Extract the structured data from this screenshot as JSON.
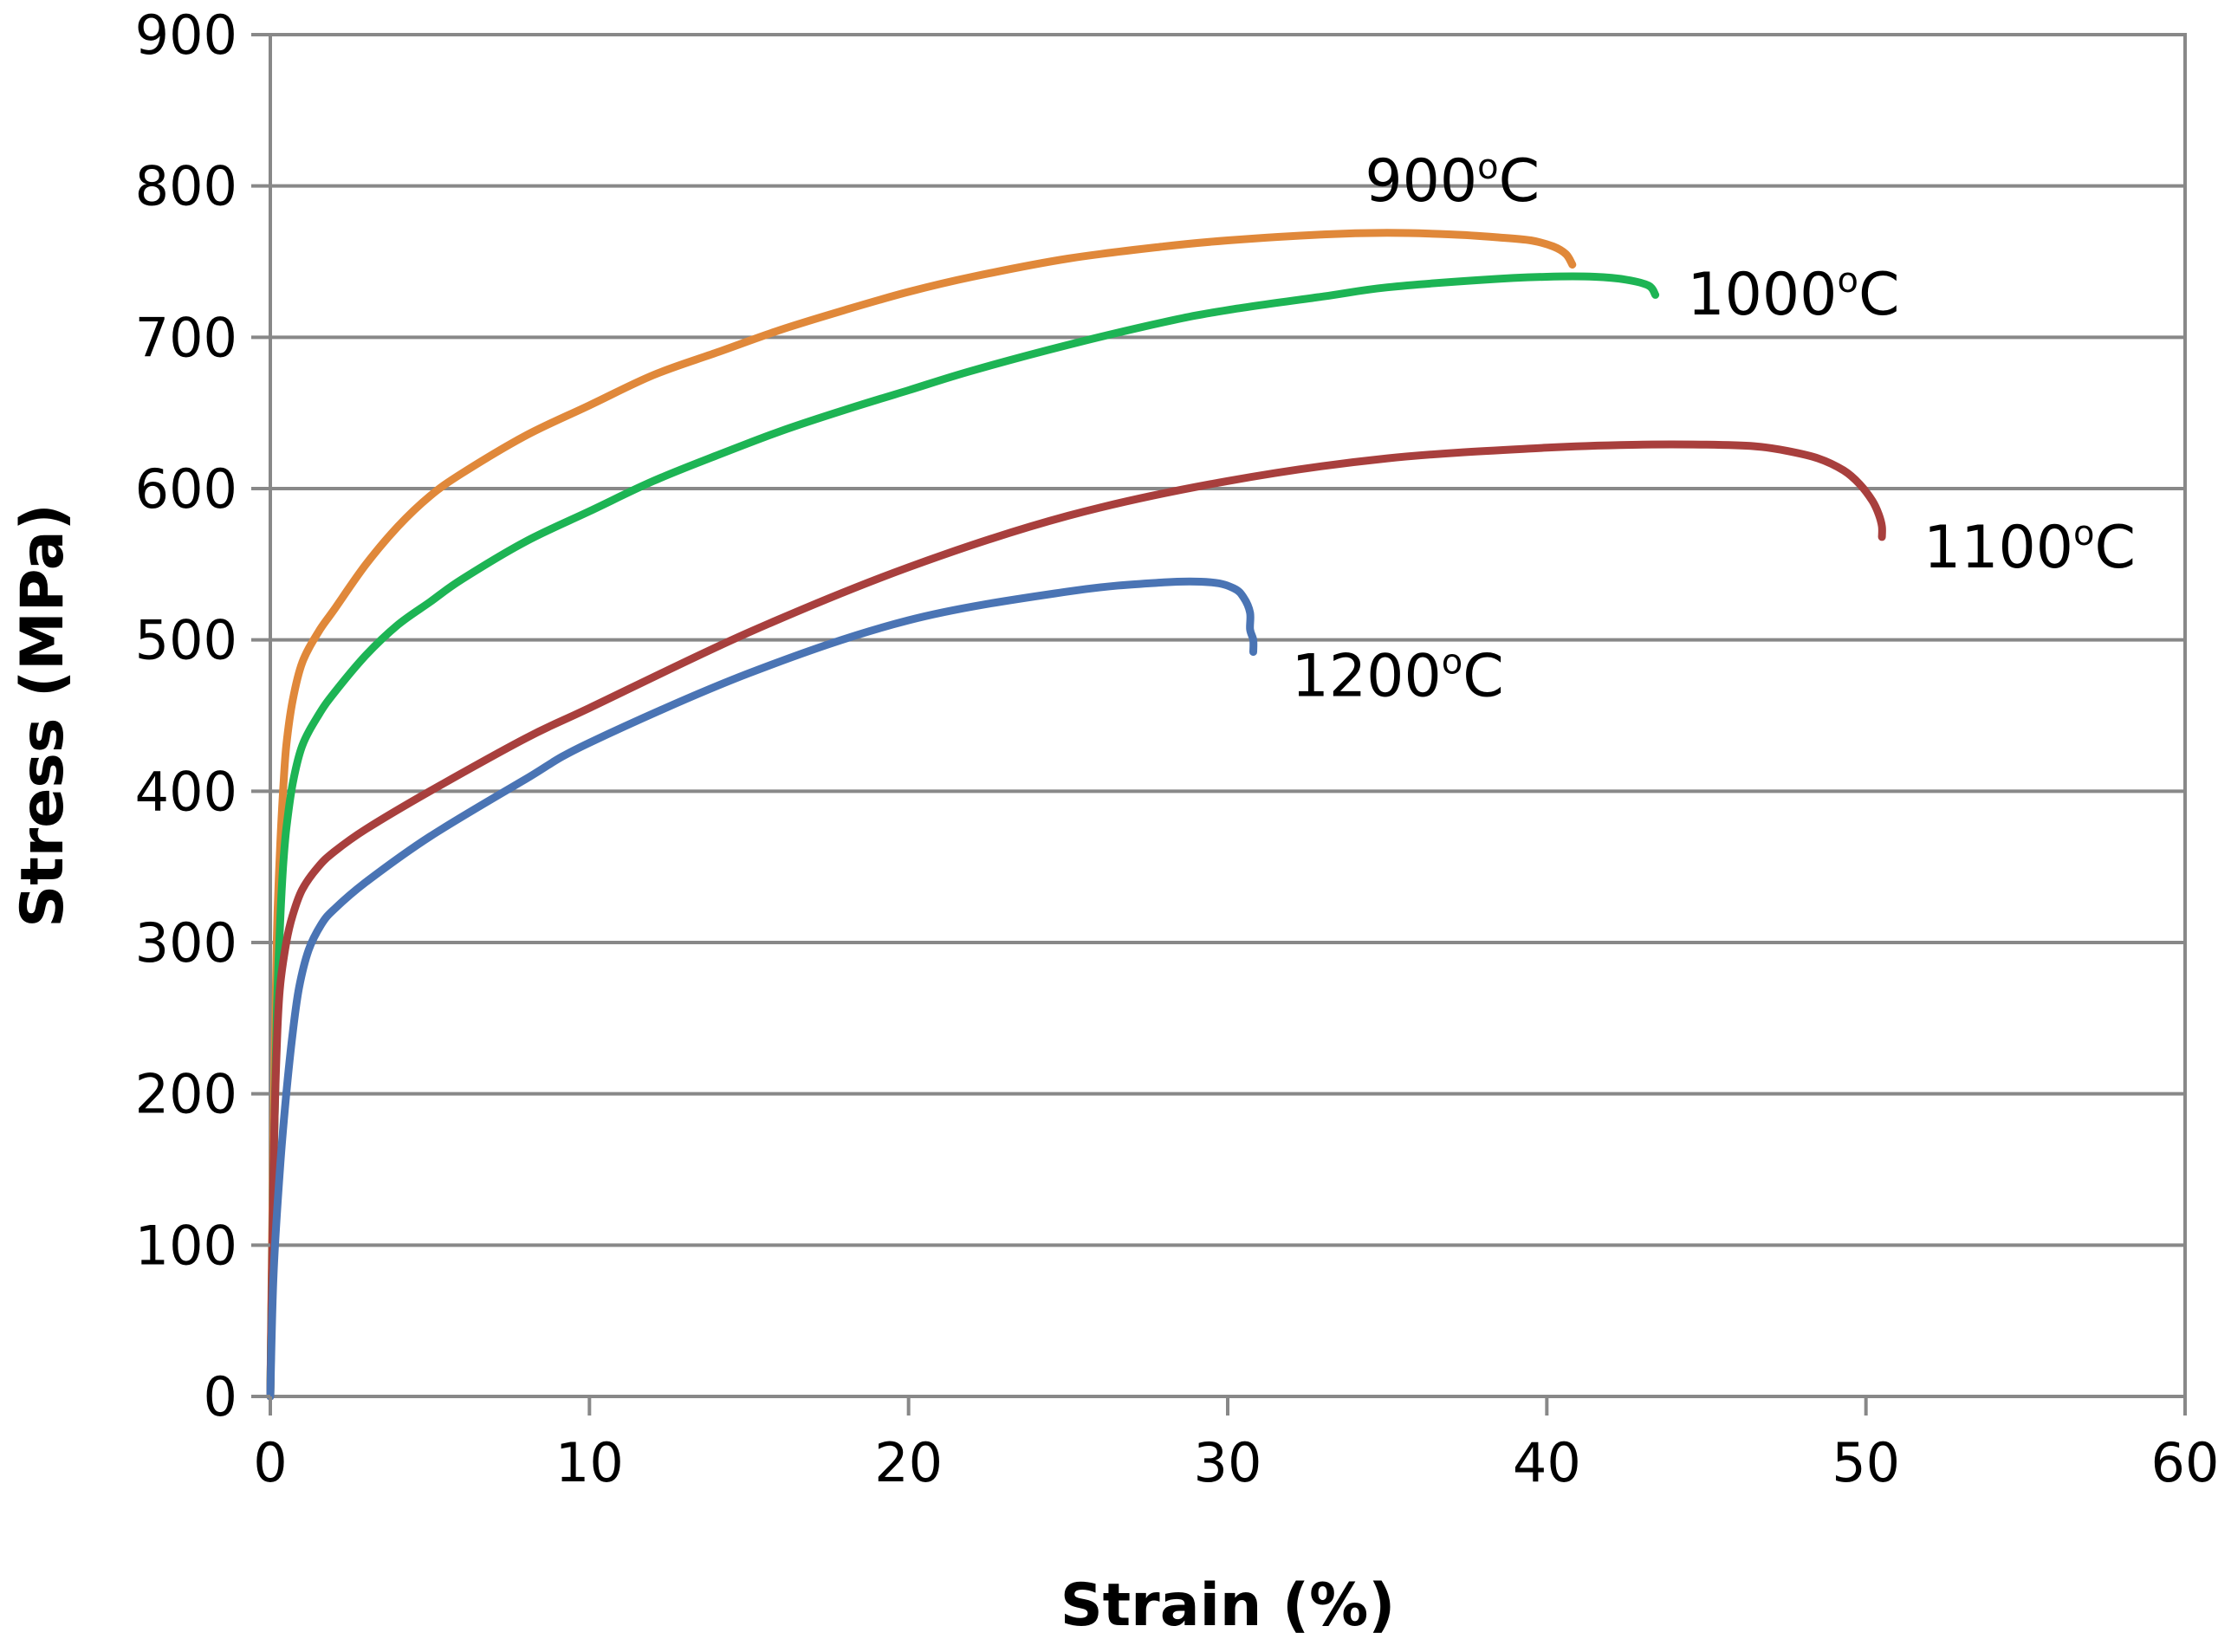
{
  "chart_data": {
    "type": "line",
    "title": "",
    "xlabel": "Strain (%)",
    "ylabel": "Stress (MPa)",
    "xlim": [
      0,
      60
    ],
    "ylim": [
      0,
      900
    ],
    "xticks": [
      0,
      10,
      20,
      30,
      40,
      50,
      60
    ],
    "yticks": [
      0,
      100,
      200,
      300,
      400,
      500,
      600,
      700,
      800,
      900
    ],
    "grid": true,
    "legend": "none",
    "series": [
      {
        "name": "900oC",
        "label_text": "900",
        "label_sup": "o",
        "label_unit": "C",
        "label_anchor": [
          34.3,
          790
        ],
        "color": "#e0883a",
        "x": [
          0,
          0.1,
          0.2,
          0.3,
          0.4,
          0.5,
          0.7,
          1.0,
          1.5,
          2,
          3,
          4,
          5,
          6,
          8,
          10,
          12,
          14,
          16,
          18,
          20,
          22,
          25,
          28,
          30,
          33,
          35,
          37,
          38.5,
          39.5,
          40.2,
          40.6,
          40.8
        ],
        "y": [
          0,
          180,
          300,
          360,
          400,
          430,
          460,
          485,
          505,
          520,
          550,
          575,
          595,
          610,
          635,
          655,
          675,
          690,
          705,
          718,
          730,
          740,
          752,
          760,
          764,
          768,
          769,
          768,
          766,
          764,
          760,
          755,
          748
        ]
      },
      {
        "name": "1000oC",
        "label_text": "1000",
        "label_sup": "o",
        "label_unit": "C",
        "label_anchor": [
          44.4,
          715
        ],
        "color": "#1db454",
        "x": [
          0,
          0.1,
          0.2,
          0.3,
          0.4,
          0.5,
          0.7,
          1.0,
          1.5,
          2,
          3,
          4,
          5,
          6,
          8,
          10,
          12,
          14,
          16,
          18,
          20,
          22,
          25,
          28,
          30,
          33,
          35,
          38,
          40,
          41.5,
          42.5,
          43.2,
          43.4
        ],
        "y": [
          0,
          150,
          250,
          310,
          350,
          375,
          405,
          430,
          450,
          465,
          490,
          510,
          525,
          540,
          565,
          585,
          605,
          622,
          638,
          652,
          665,
          678,
          695,
          710,
          718,
          727,
          733,
          738,
          740,
          740,
          738,
          734,
          728
        ]
      },
      {
        "name": "1100oC",
        "label_text": "1100",
        "label_sup": "o",
        "label_unit": "C",
        "label_anchor": [
          51.8,
          548
        ],
        "color": "#a83f3d",
        "x": [
          0,
          0.1,
          0.2,
          0.3,
          0.5,
          0.7,
          1.0,
          1.5,
          2,
          3,
          5,
          8,
          10,
          15,
          20,
          25,
          30,
          35,
          40,
          43,
          45,
          46.5,
          47.5,
          48.5,
          49.3,
          49.8,
          50.2,
          50.4,
          50.5,
          50.5
        ],
        "y": [
          0,
          150,
          230,
          270,
          300,
          318,
          335,
          350,
          360,
          375,
          400,
          435,
          455,
          505,
          548,
          582,
          605,
          620,
          627,
          629,
          629,
          628,
          625,
          620,
          612,
          603,
          592,
          583,
          575,
          568
        ]
      },
      {
        "name": "1200oC",
        "label_text": "1200",
        "label_sup": "o",
        "label_unit": "C",
        "label_anchor": [
          32.0,
          463
        ],
        "color": "#4a74b4",
        "x": [
          0,
          0.1,
          0.3,
          0.5,
          0.7,
          0.9,
          1.2,
          1.6,
          2,
          3,
          5,
          8,
          10,
          15,
          20,
          25,
          28,
          29.5,
          30.2,
          30.5,
          30.7,
          30.7,
          30.8,
          30.8
        ],
        "y": [
          0,
          80,
          150,
          200,
          240,
          270,
          295,
          312,
          322,
          340,
          370,
          408,
          432,
          478,
          513,
          532,
          538,
          538,
          534,
          528,
          518,
          507,
          500,
          492
        ]
      }
    ]
  }
}
